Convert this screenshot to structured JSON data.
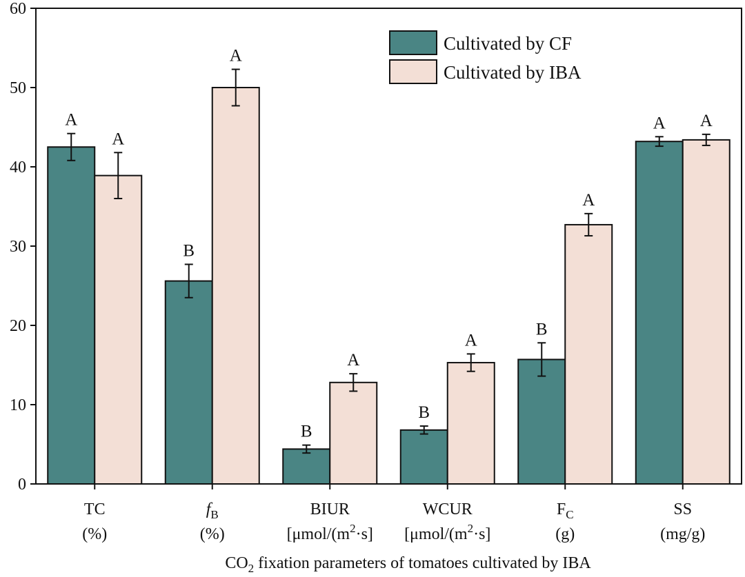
{
  "chart_data": {
    "type": "bar",
    "title": "",
    "xlabel": "CO2 fixation parameters of tomatoes cultivated by IBA",
    "xlabel_parts": {
      "pre": "CO",
      "sub": "2",
      "post": " fixation parameters of tomatoes cultivated by IBA"
    },
    "ylabel": "",
    "ylim": [
      0,
      60
    ],
    "yticks": [
      0,
      10,
      20,
      30,
      40,
      50,
      60
    ],
    "categories": [
      {
        "line1": "TC",
        "line1_sub": "",
        "line1_italic": false,
        "line2": "(%)",
        "line2_sup": "",
        "line2_end": ""
      },
      {
        "line1": "f",
        "line1_sub": "B",
        "line1_italic": true,
        "line2": "(%)",
        "line2_sup": "",
        "line2_end": ""
      },
      {
        "line1": "BIUR",
        "line1_sub": "",
        "line1_italic": false,
        "line2": "[μmol/(m",
        "line2_sup": "2",
        "line2_end": "·s]"
      },
      {
        "line1": "WCUR",
        "line1_sub": "",
        "line1_italic": false,
        "line2": "[μmol/(m",
        "line2_sup": "2",
        "line2_end": "·s]"
      },
      {
        "line1": "F",
        "line1_sub": "C",
        "line1_italic": false,
        "line2": "(g)",
        "line2_sup": "",
        "line2_end": ""
      },
      {
        "line1": "SS",
        "line1_sub": "",
        "line1_italic": false,
        "line2": "(mg/g)",
        "line2_sup": "",
        "line2_end": ""
      }
    ],
    "series": [
      {
        "name": "Cultivated by CF",
        "color": "#4a8584",
        "values": [
          42.5,
          25.6,
          4.4,
          6.8,
          15.7,
          43.2
        ],
        "errors": [
          1.7,
          2.1,
          0.5,
          0.5,
          2.1,
          0.6
        ],
        "significance": [
          "A",
          "B",
          "B",
          "B",
          "B",
          "A"
        ]
      },
      {
        "name": "Cultivated by IBA",
        "color": "#f3dfd6",
        "values": [
          38.9,
          50.0,
          12.8,
          15.3,
          32.7,
          43.4
        ],
        "errors": [
          2.9,
          2.3,
          1.1,
          1.1,
          1.4,
          0.7
        ],
        "significance": [
          "A",
          "A",
          "A",
          "A",
          "A",
          "A"
        ]
      }
    ],
    "legend_position": "top-right",
    "grid": false
  }
}
